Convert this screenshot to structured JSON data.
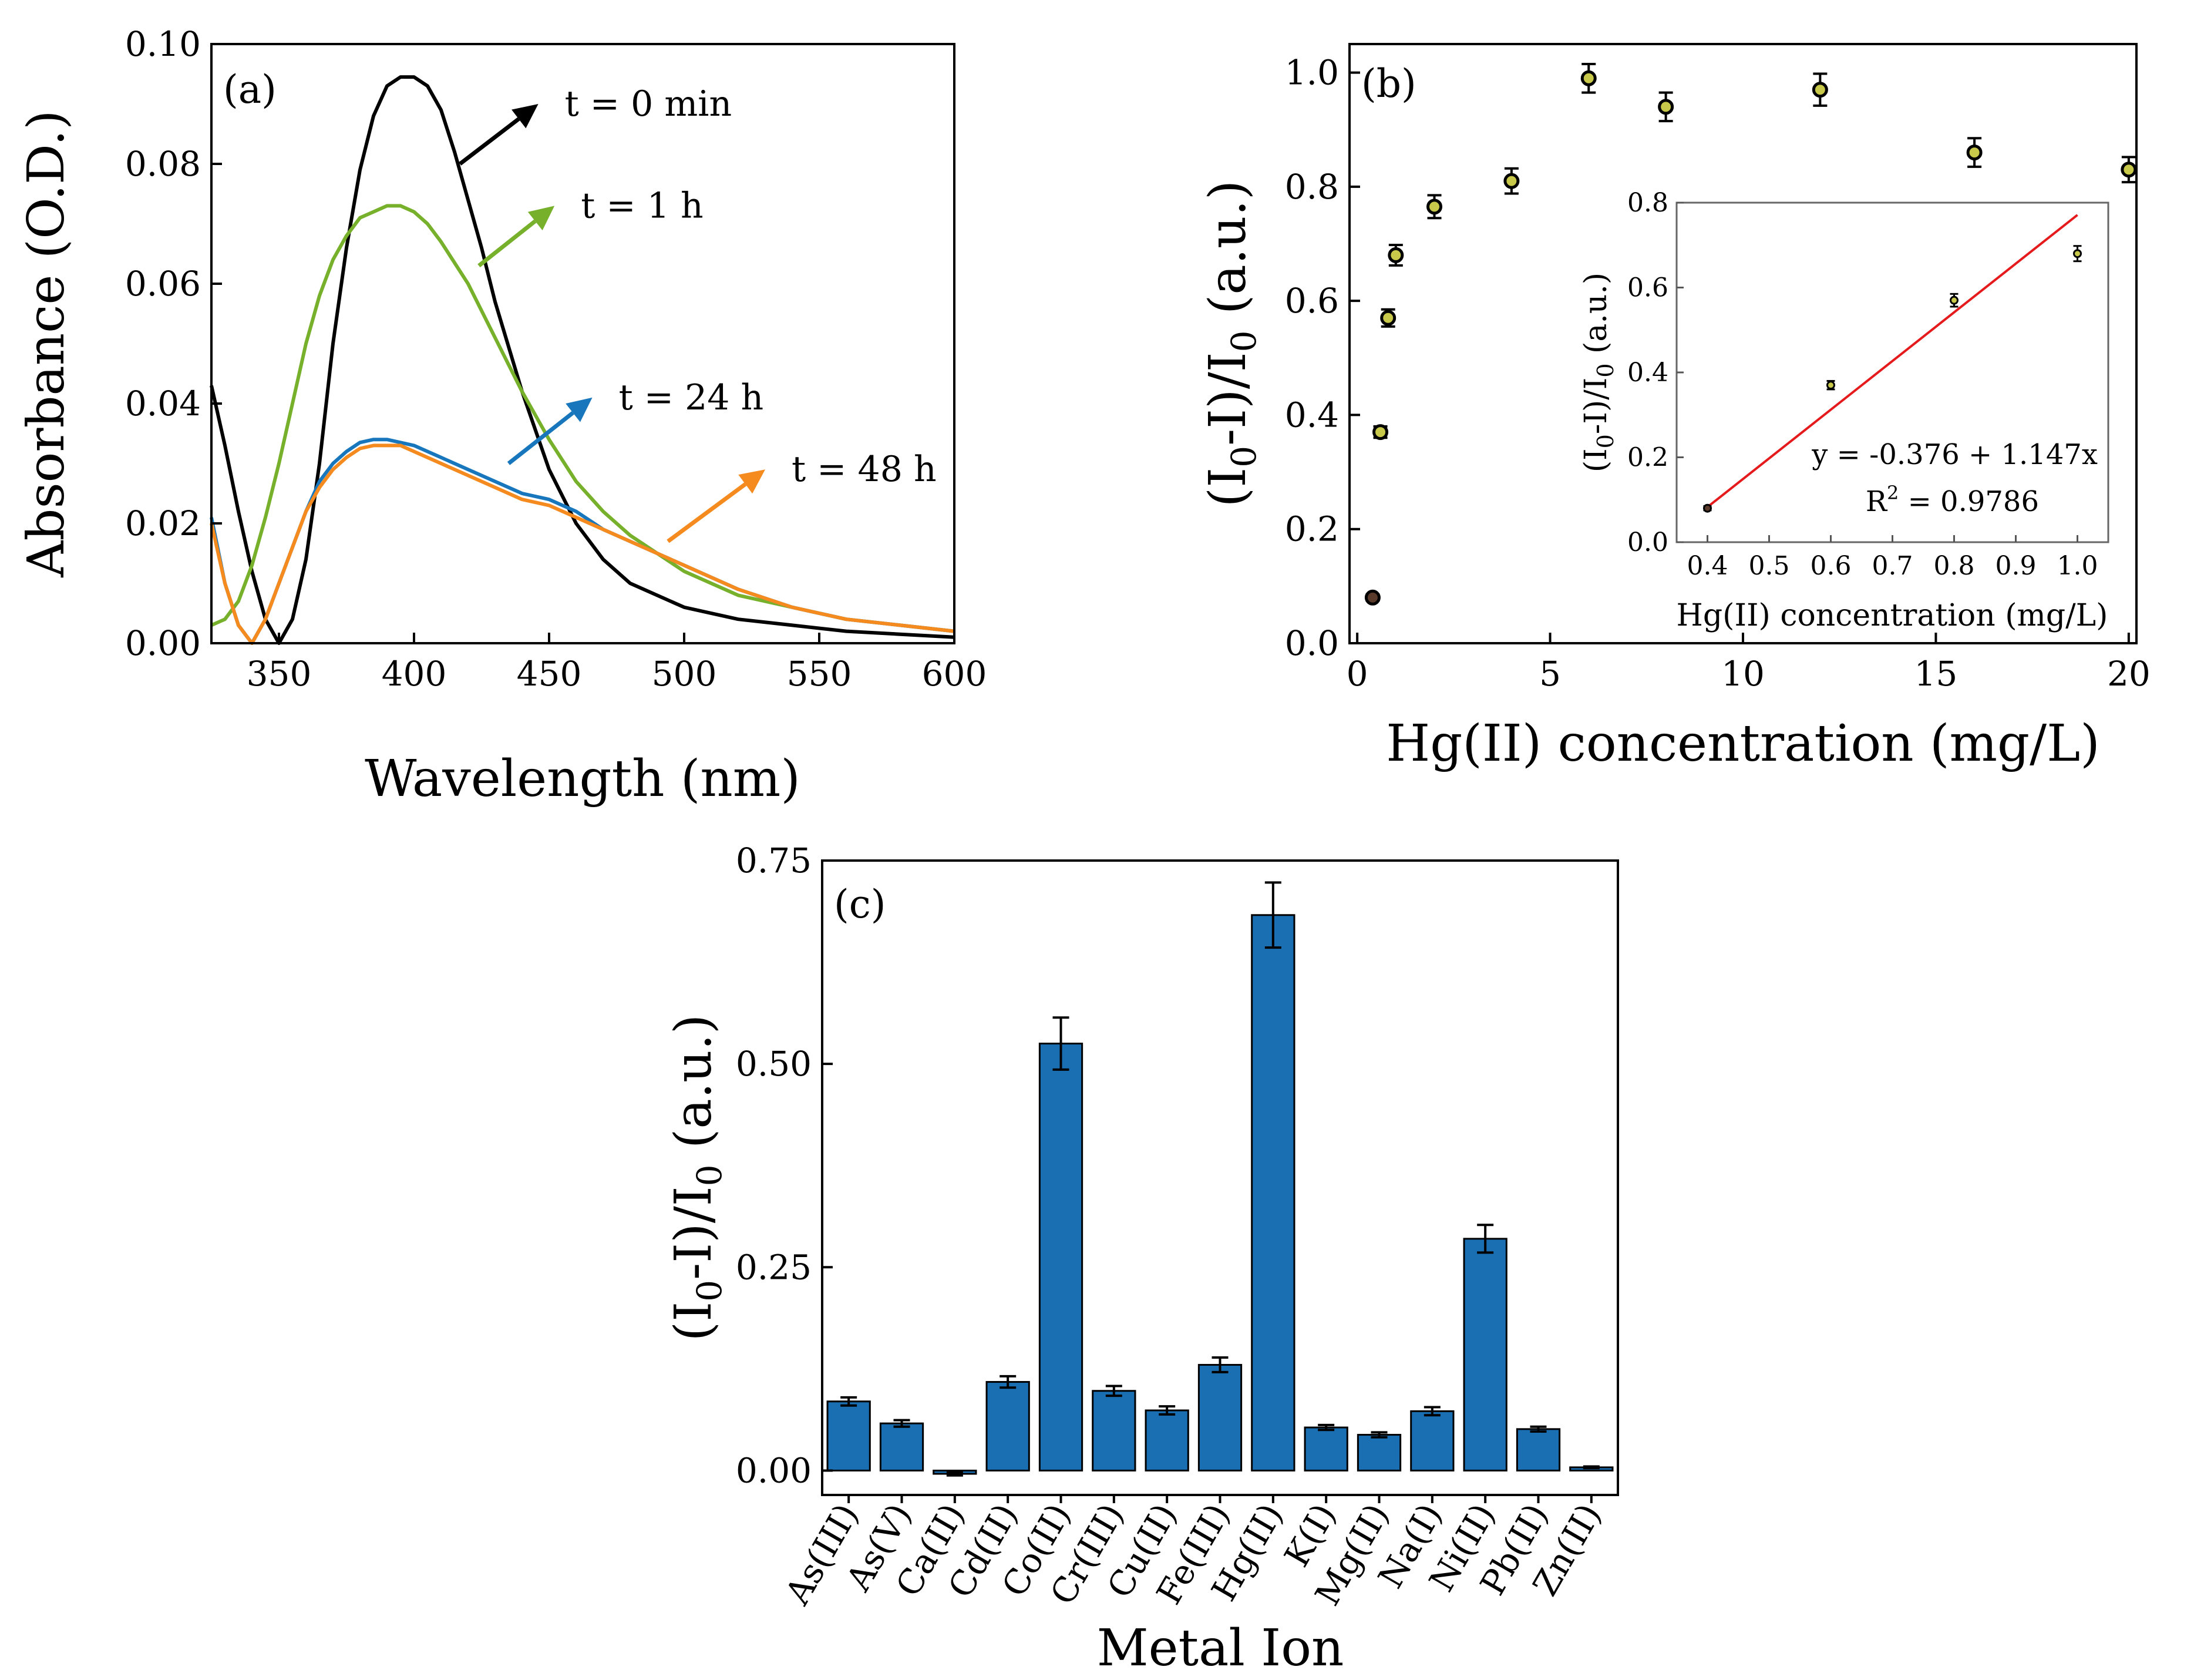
{
  "colors": {
    "t0": "#000000",
    "t1": "#77b02b",
    "t24": "#1877bc",
    "t48": "#f58a1f",
    "bar": "#1a6fb3",
    "fit": "#e41a1c",
    "marker_fill": "#c8c84a"
  },
  "chart_data": [
    {
      "panel": "(a)",
      "type": "line",
      "title": "",
      "xlabel": "Wavelength (nm)",
      "ylabel": "Absorbance (O.D.)",
      "xlim": [
        325,
        600
      ],
      "ylim": [
        0,
        0.1
      ],
      "xticks": [
        "350",
        "400",
        "450",
        "500",
        "550",
        "600"
      ],
      "yticks": [
        "0.00",
        "0.02",
        "0.04",
        "0.06",
        "0.08",
        "0.10"
      ],
      "series": [
        {
          "name": "t = 0 min",
          "color_key": "t0",
          "x": [
            325,
            330,
            335,
            340,
            345,
            350,
            355,
            360,
            365,
            370,
            375,
            380,
            385,
            390,
            395,
            400,
            405,
            410,
            415,
            420,
            425,
            430,
            440,
            450,
            460,
            470,
            480,
            500,
            520,
            540,
            560,
            580,
            600
          ],
          "y": [
            0.043,
            0.033,
            0.022,
            0.012,
            0.004,
            0.0,
            0.004,
            0.014,
            0.03,
            0.05,
            0.066,
            0.079,
            0.088,
            0.093,
            0.0945,
            0.0945,
            0.093,
            0.089,
            0.082,
            0.074,
            0.066,
            0.057,
            0.042,
            0.029,
            0.02,
            0.014,
            0.01,
            0.006,
            0.004,
            0.003,
            0.002,
            0.0015,
            0.001
          ]
        },
        {
          "name": "t = 1 h",
          "color_key": "t1",
          "x": [
            325,
            330,
            335,
            340,
            345,
            350,
            355,
            360,
            365,
            370,
            375,
            380,
            385,
            390,
            395,
            400,
            405,
            410,
            420,
            430,
            440,
            450,
            460,
            470,
            480,
            500,
            520,
            540,
            560,
            580,
            600
          ],
          "y": [
            0.003,
            0.004,
            0.007,
            0.013,
            0.021,
            0.03,
            0.04,
            0.05,
            0.058,
            0.064,
            0.068,
            0.071,
            0.072,
            0.073,
            0.073,
            0.072,
            0.07,
            0.067,
            0.06,
            0.051,
            0.042,
            0.034,
            0.027,
            0.022,
            0.018,
            0.012,
            0.008,
            0.006,
            0.004,
            0.003,
            0.002
          ]
        },
        {
          "name": "t = 24 h",
          "color_key": "t24",
          "x": [
            325,
            330,
            335,
            340,
            345,
            350,
            355,
            360,
            365,
            370,
            375,
            380,
            385,
            390,
            395,
            400,
            410,
            420,
            430,
            440,
            450,
            460,
            470,
            480,
            500,
            520,
            540,
            560,
            580,
            600
          ],
          "y": [
            0.021,
            0.01,
            0.003,
            0.0,
            0.004,
            0.01,
            0.016,
            0.022,
            0.027,
            0.03,
            0.032,
            0.0335,
            0.034,
            0.034,
            0.0335,
            0.033,
            0.031,
            0.029,
            0.027,
            0.025,
            0.024,
            0.022,
            0.019,
            0.017,
            0.013,
            0.009,
            0.006,
            0.004,
            0.003,
            0.002
          ]
        },
        {
          "name": "t = 48 h",
          "color_key": "t48",
          "x": [
            325,
            330,
            335,
            340,
            345,
            350,
            355,
            360,
            365,
            370,
            375,
            380,
            385,
            390,
            395,
            400,
            410,
            420,
            430,
            440,
            450,
            460,
            470,
            480,
            500,
            520,
            540,
            560,
            580,
            600
          ],
          "y": [
            0.02,
            0.01,
            0.003,
            0.0,
            0.004,
            0.01,
            0.016,
            0.022,
            0.026,
            0.029,
            0.031,
            0.0325,
            0.033,
            0.033,
            0.033,
            0.032,
            0.03,
            0.028,
            0.026,
            0.024,
            0.023,
            0.021,
            0.019,
            0.017,
            0.013,
            0.009,
            0.006,
            0.004,
            0.003,
            0.002
          ]
        }
      ],
      "annotations": [
        {
          "text": "t = 0 min",
          "color_key": "t0",
          "arrow_from": [
            417,
            0.08
          ],
          "arrow_to": [
            446,
            0.09
          ]
        },
        {
          "text": "t = 1 h",
          "color_key": "t1",
          "arrow_from": [
            424,
            0.063
          ],
          "arrow_to": [
            452,
            0.073
          ]
        },
        {
          "text": "t = 24 h",
          "color_key": "t24",
          "arrow_from": [
            435,
            0.03
          ],
          "arrow_to": [
            466,
            0.041
          ]
        },
        {
          "text": "t = 48 h",
          "color_key": "t48",
          "arrow_from": [
            494,
            0.017
          ],
          "arrow_to": [
            530,
            0.029
          ]
        }
      ]
    },
    {
      "panel": "(b)",
      "type": "scatter",
      "title": "",
      "xlabel": "Hg(II) concentration (mg/L)",
      "ylabel": "(I0-I)/I0 (a.u.)",
      "xlim": [
        -0.2,
        20.2
      ],
      "ylim": [
        0,
        1.05
      ],
      "xticks": [
        "0",
        "5",
        "10",
        "15",
        "20"
      ],
      "yticks": [
        "0.0",
        "0.2",
        "0.4",
        "0.6",
        "0.8",
        "1.0"
      ],
      "points": [
        {
          "x": 0.4,
          "y": 0.08,
          "err": 0.005
        },
        {
          "x": 0.6,
          "y": 0.37,
          "err": 0.01
        },
        {
          "x": 0.8,
          "y": 0.57,
          "err": 0.015
        },
        {
          "x": 1.0,
          "y": 0.68,
          "err": 0.018
        },
        {
          "x": 2.0,
          "y": 0.765,
          "err": 0.02
        },
        {
          "x": 4.0,
          "y": 0.81,
          "err": 0.022
        },
        {
          "x": 6.0,
          "y": 0.99,
          "err": 0.025
        },
        {
          "x": 8.0,
          "y": 0.94,
          "err": 0.025
        },
        {
          "x": 12.0,
          "y": 0.97,
          "err": 0.028
        },
        {
          "x": 16.0,
          "y": 0.86,
          "err": 0.025
        },
        {
          "x": 20.0,
          "y": 0.83,
          "err": 0.022
        }
      ],
      "inset": {
        "type": "scatter",
        "xlabel": "Hg(II) concentration (mg/L)",
        "ylabel": "(I0-I)/I0 (a.u.)",
        "xlim": [
          0.35,
          1.05
        ],
        "ylim": [
          0,
          0.8
        ],
        "xticks": [
          "0.4",
          "0.5",
          "0.6",
          "0.7",
          "0.8",
          "0.9",
          "1.0"
        ],
        "yticks": [
          "0.0",
          "0.2",
          "0.4",
          "0.6",
          "0.8"
        ],
        "points": [
          {
            "x": 0.4,
            "y": 0.08,
            "err": 0.005
          },
          {
            "x": 0.6,
            "y": 0.37,
            "err": 0.01
          },
          {
            "x": 0.8,
            "y": 0.57,
            "err": 0.015
          },
          {
            "x": 1.0,
            "y": 0.68,
            "err": 0.018
          }
        ],
        "fit": {
          "intercept": -0.376,
          "slope": 1.147,
          "x_range": [
            0.4,
            1.0
          ]
        },
        "equation": "y = -0.376 + 1.147x",
        "r2_label": "R",
        "r2_sup": "2",
        "r2_value": " = 0.9786"
      }
    },
    {
      "panel": "(c)",
      "type": "bar",
      "title": "",
      "xlabel": "Metal Ion",
      "ylabel": "(I0-I)/I0 (a.u.)",
      "ylim": [
        -0.03,
        0.75
      ],
      "yticks": [
        "0.00",
        "0.25",
        "0.50",
        "0.75"
      ],
      "categories": [
        "As(III)",
        "As(V)",
        "Ca(II)",
        "Cd(II)",
        "Co(II)",
        "Cr(III)",
        "Cu(II)",
        "Fe(III)",
        "Hg(II)",
        "K(I)",
        "Mg(II)",
        "Na(I)",
        "Ni(II)",
        "Pb(II)",
        "Zn(II)"
      ],
      "values": [
        0.085,
        0.058,
        -0.004,
        0.109,
        0.525,
        0.098,
        0.074,
        0.13,
        0.683,
        0.053,
        0.044,
        0.073,
        0.285,
        0.051,
        0.004
      ],
      "errors": [
        0.005,
        0.004,
        0.002,
        0.007,
        0.032,
        0.006,
        0.005,
        0.009,
        0.04,
        0.003,
        0.003,
        0.005,
        0.017,
        0.003,
        0.001
      ]
    }
  ]
}
